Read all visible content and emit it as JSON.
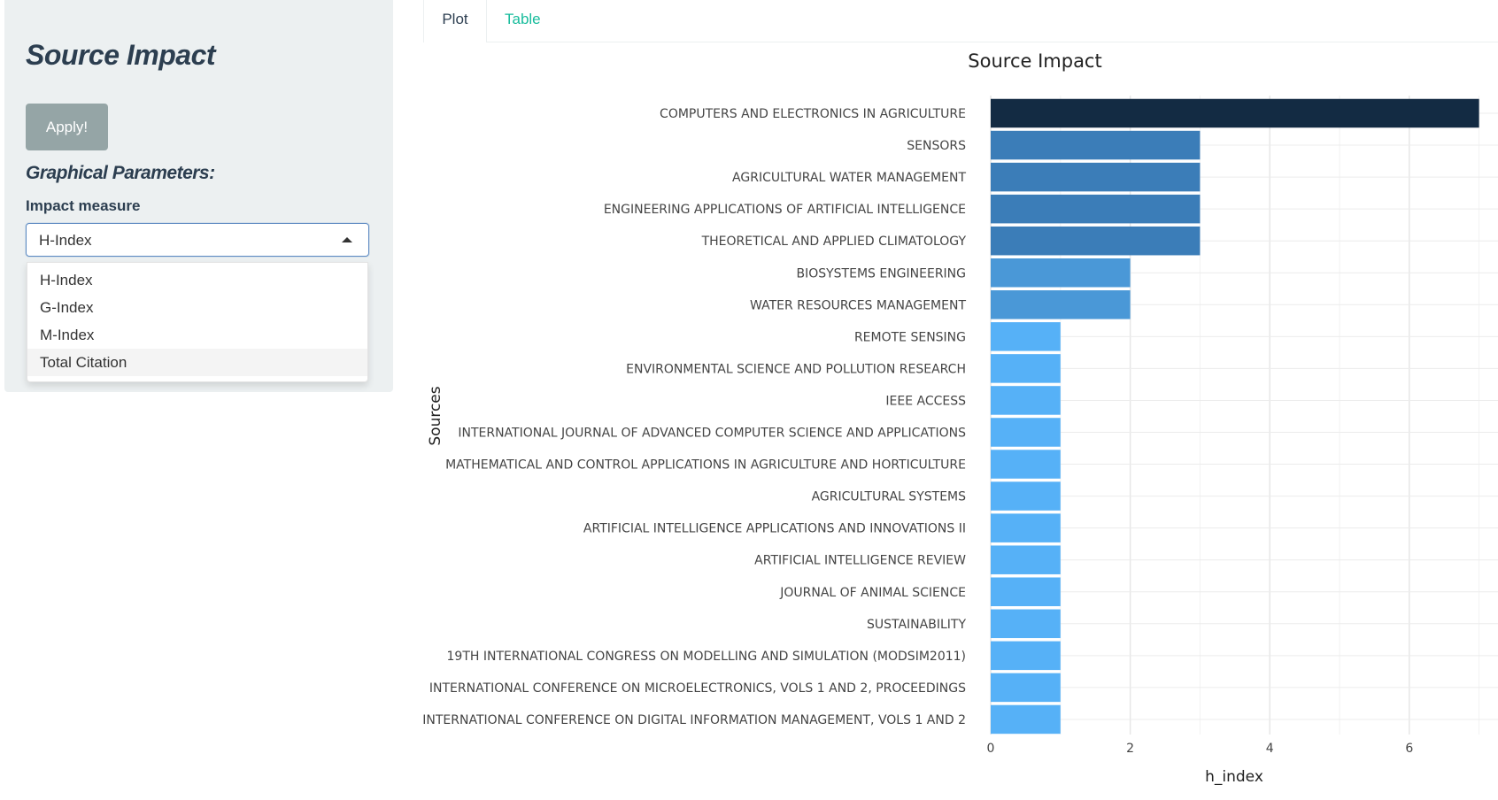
{
  "sidebar": {
    "title": "Source Impact",
    "apply_label": "Apply!",
    "graphical_params_heading": "Graphical Parameters:",
    "impact_measure_label": "Impact measure",
    "select_value": "H-Index",
    "options": [
      "H-Index",
      "G-Index",
      "M-Index",
      "Total Citation"
    ],
    "highlighted_option": "Total Citation"
  },
  "tabs": [
    {
      "label": "Plot",
      "active": true
    },
    {
      "label": "Table",
      "active": false
    }
  ],
  "chart_data": {
    "type": "bar",
    "orientation": "horizontal",
    "title": "Source Impact",
    "xlabel": "h_index",
    "ylabel": "Sources",
    "xlim": [
      0,
      7
    ],
    "xticks": [
      0,
      2,
      4,
      6
    ],
    "grid": true,
    "categories": [
      "COMPUTERS AND ELECTRONICS IN AGRICULTURE",
      "SENSORS",
      "AGRICULTURAL WATER MANAGEMENT",
      "ENGINEERING APPLICATIONS OF ARTIFICIAL INTELLIGENCE",
      "THEORETICAL AND APPLIED CLIMATOLOGY",
      "BIOSYSTEMS ENGINEERING",
      "WATER RESOURCES MANAGEMENT",
      "REMOTE SENSING",
      "ENVIRONMENTAL SCIENCE AND POLLUTION RESEARCH",
      "IEEE ACCESS",
      "INTERNATIONAL JOURNAL OF ADVANCED COMPUTER SCIENCE AND APPLICATIONS",
      "MATHEMATICAL AND CONTROL APPLICATIONS IN AGRICULTURE AND HORTICULTURE",
      "AGRICULTURAL SYSTEMS",
      "ARTIFICIAL INTELLIGENCE APPLICATIONS AND INNOVATIONS II",
      "ARTIFICIAL INTELLIGENCE REVIEW",
      "JOURNAL OF ANIMAL SCIENCE",
      "SUSTAINABILITY",
      "19TH INTERNATIONAL CONGRESS ON MODELLING AND SIMULATION (MODSIM2011)",
      "INTERNATIONAL CONFERENCE ON MICROELECTRONICS, VOLS 1 AND 2, PROCEEDINGS",
      "INTERNATIONAL CONFERENCE ON DIGITAL INFORMATION MANAGEMENT, VOLS 1 AND 2"
    ],
    "values": [
      7,
      3,
      3,
      3,
      3,
      2,
      2,
      1,
      1,
      1,
      1,
      1,
      1,
      1,
      1,
      1,
      1,
      1,
      1,
      1
    ],
    "colors": {
      "7": "#132b43",
      "3": "#3b7db8",
      "2": "#4a98d7",
      "1": "#56b1f7"
    }
  }
}
